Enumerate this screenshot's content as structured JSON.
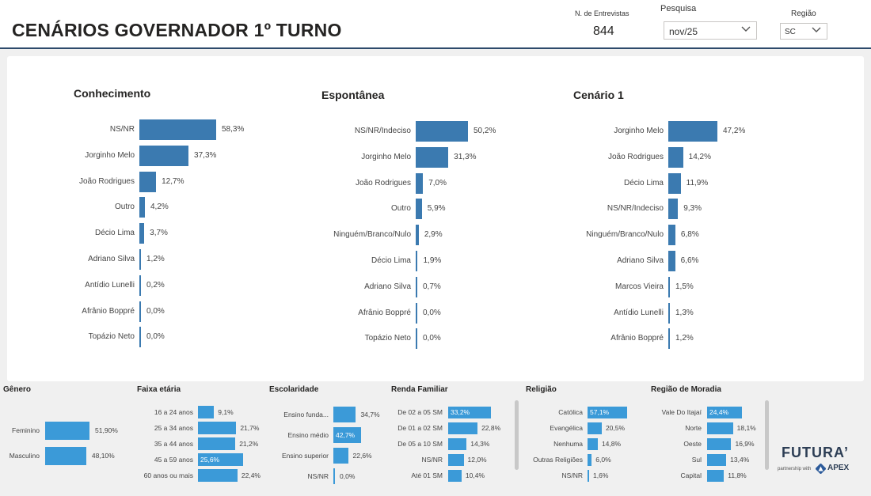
{
  "header": {
    "title": "CENÁRIOS GOVERNADOR 1º TURNO",
    "kpi_label": "N. de Entrevistas",
    "kpi_value": "844",
    "pesquisa_label": "Pesquisa",
    "pesquisa_value": "nov/25",
    "regiao_label": "Região",
    "regiao_value": "SC"
  },
  "chart_data": [
    {
      "type": "bar",
      "id": "conhecimento",
      "title": "Conhecimento",
      "categories": [
        "NS/NR",
        "Jorginho Melo",
        "João Rodrigues",
        "Outro",
        "Décio Lima",
        "Adriano Silva",
        "Antídio Lunelli",
        "Afrânio Boppré",
        "Topázio Neto"
      ],
      "values": [
        58.3,
        37.3,
        12.7,
        4.2,
        3.7,
        1.2,
        0.2,
        0.0,
        0.0
      ],
      "labels": [
        "58,3%",
        "37,3%",
        "12,7%",
        "4,2%",
        "3,7%",
        "1,2%",
        "0,2%",
        "0,0%",
        "0,0%"
      ]
    },
    {
      "type": "bar",
      "id": "espontanea",
      "title": "Espontânea",
      "categories": [
        "NS/NR/Indeciso",
        "Jorginho Melo",
        "João Rodrigues",
        "Outro",
        "Ninguém/Branco/Nulo",
        "Décio Lima",
        "Adriano Silva",
        "Afrânio Boppré",
        "Topázio Neto"
      ],
      "values": [
        50.2,
        31.3,
        7.0,
        5.9,
        2.9,
        1.9,
        0.7,
        0.0,
        0.0
      ],
      "labels": [
        "50,2%",
        "31,3%",
        "7,0%",
        "5,9%",
        "2,9%",
        "1,9%",
        "0,7%",
        "0,0%",
        "0,0%"
      ]
    },
    {
      "type": "bar",
      "id": "cenario1",
      "title": "Cenário 1",
      "categories": [
        "Jorginho Melo",
        "João Rodrigues",
        "Décio Lima",
        "NS/NR/Indeciso",
        "Ninguém/Branco/Nulo",
        "Adriano Silva",
        "Marcos Vieira",
        "Antídio Lunelli",
        "Afrânio Boppré"
      ],
      "values": [
        47.2,
        14.2,
        11.9,
        9.3,
        6.8,
        6.6,
        1.5,
        1.3,
        1.2
      ],
      "labels": [
        "47,2%",
        "14,2%",
        "11,9%",
        "9,3%",
        "6,8%",
        "6,6%",
        "1,5%",
        "1,3%",
        "1,2%"
      ]
    },
    {
      "type": "bar",
      "id": "genero",
      "title": "Gênero",
      "categories": [
        "Feminino",
        "Masculino"
      ],
      "values": [
        51.9,
        48.1
      ],
      "labels": [
        "51,90%",
        "48,10%"
      ]
    },
    {
      "type": "bar",
      "id": "faixa",
      "title": "Faixa etária",
      "categories": [
        "16 a 24 anos",
        "25 a 34 anos",
        "35 a 44 anos",
        "45 a 59 anos",
        "60 anos ou mais"
      ],
      "values": [
        9.1,
        21.7,
        21.2,
        25.6,
        22.4
      ],
      "labels": [
        "9,1%",
        "21,7%",
        "21,2%",
        "25,6%",
        "22,4%"
      ]
    },
    {
      "type": "bar",
      "id": "escolaridade",
      "title": "Escolaridade",
      "categories": [
        "Ensino funda...",
        "Ensino médio",
        "Ensino superior",
        "NS/NR"
      ],
      "values": [
        34.7,
        42.7,
        22.6,
        0.0
      ],
      "labels": [
        "34,7%",
        "42,7%",
        "22,6%",
        "0,0%"
      ]
    },
    {
      "type": "bar",
      "id": "renda",
      "title": "Renda Familiar",
      "categories": [
        "De 02 a 05 SM",
        "De 01 a 02 SM",
        "De 05 a 10 SM",
        "NS/NR",
        "Até 01 SM"
      ],
      "values": [
        33.2,
        22.8,
        14.3,
        12.0,
        10.4
      ],
      "labels": [
        "33,2%",
        "22,8%",
        "14,3%",
        "12,0%",
        "10,4%"
      ]
    },
    {
      "type": "bar",
      "id": "religiao",
      "title": "Religião",
      "categories": [
        "Católica",
        "Evangélica",
        "Nenhuma",
        "Outras Religiões",
        "NS/NR"
      ],
      "values": [
        57.1,
        20.5,
        14.8,
        6.0,
        1.6
      ],
      "labels": [
        "57,1%",
        "20,5%",
        "14,8%",
        "6,0%",
        "1,6%"
      ]
    },
    {
      "type": "bar",
      "id": "moradia",
      "title": "Região de Moradia",
      "categories": [
        "Vale Do Itajaí",
        "Norte",
        "Oeste",
        "Sul",
        "Capital"
      ],
      "values": [
        24.4,
        18.1,
        16.9,
        13.4,
        11.8
      ],
      "labels": [
        "24,4%",
        "18,1%",
        "16,9%",
        "13,4%",
        "11,8%"
      ]
    }
  ],
  "logo": {
    "brand": "FUTURA’",
    "partnership": "partnership with",
    "partner": "APEX"
  }
}
